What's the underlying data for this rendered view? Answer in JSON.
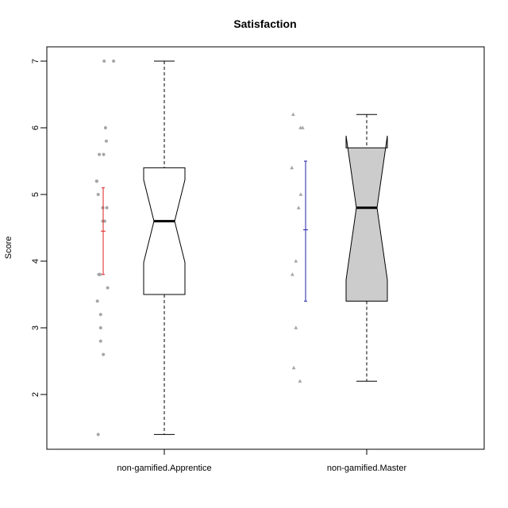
{
  "chart_data": {
    "type": "boxplot",
    "title": "Satisfaction",
    "xlabel": "",
    "ylabel": "Score",
    "ylim": [
      1.2,
      7.2
    ],
    "yticks": [
      "2",
      "3",
      "4",
      "5",
      "6",
      "7"
    ],
    "notched": true,
    "grid": false,
    "groups": [
      {
        "category": "non-gamified.Apprentice",
        "box_fill": "#ffffff",
        "whisker_low": 1.4,
        "q1": 3.5,
        "median": 4.6,
        "q3": 5.4,
        "whisker_high": 7.0,
        "notch_low": 3.98,
        "notch_high": 5.22,
        "mean": 4.45,
        "ci_low": 3.8,
        "ci_high": 5.1,
        "ci_color": "#dd2222",
        "points": [
          {
            "x": -0.7,
            "y": 7.0
          },
          {
            "x": -0.35,
            "y": 7.0
          },
          {
            "x": -0.65,
            "y": 6.0
          },
          {
            "x": -0.62,
            "y": 5.8
          },
          {
            "x": -0.88,
            "y": 5.6
          },
          {
            "x": -0.72,
            "y": 5.6
          },
          {
            "x": -0.98,
            "y": 5.2
          },
          {
            "x": -0.97,
            "y": 5.2
          },
          {
            "x": -0.92,
            "y": 5.0
          },
          {
            "x": -0.75,
            "y": 4.8
          },
          {
            "x": -0.6,
            "y": 4.8
          },
          {
            "x": -0.75,
            "y": 4.6
          },
          {
            "x": -0.68,
            "y": 4.6
          },
          {
            "x": -0.9,
            "y": 3.8
          },
          {
            "x": -0.87,
            "y": 3.8
          },
          {
            "x": -0.85,
            "y": 3.8
          },
          {
            "x": -0.57,
            "y": 3.6
          },
          {
            "x": -0.95,
            "y": 3.4
          },
          {
            "x": -0.83,
            "y": 3.2
          },
          {
            "x": -0.83,
            "y": 3.0
          },
          {
            "x": -0.83,
            "y": 2.8
          },
          {
            "x": -0.73,
            "y": 2.6
          },
          {
            "x": -0.92,
            "y": 1.4
          }
        ]
      },
      {
        "category": "non-gamified.Master",
        "box_fill": "#cccccc",
        "whisker_low": 2.2,
        "q1": 3.4,
        "median": 4.8,
        "q3": 5.7,
        "whisker_high": 6.2,
        "notch_low": 3.72,
        "notch_high": 5.88,
        "mean": 4.47,
        "ci_low": 3.4,
        "ci_high": 5.5,
        "ci_color": "#2222aa",
        "points": [
          {
            "x": -0.9,
            "y": 6.2
          },
          {
            "x": -0.63,
            "y": 6.0
          },
          {
            "x": -0.55,
            "y": 6.0
          },
          {
            "x": -0.95,
            "y": 5.4
          },
          {
            "x": -0.62,
            "y": 5.0
          },
          {
            "x": -0.7,
            "y": 4.8
          },
          {
            "x": -0.8,
            "y": 4.0
          },
          {
            "x": -0.93,
            "y": 3.8
          },
          {
            "x": -0.8,
            "y": 3.0
          },
          {
            "x": -0.88,
            "y": 2.4
          },
          {
            "x": -0.65,
            "y": 2.2
          }
        ]
      }
    ]
  }
}
